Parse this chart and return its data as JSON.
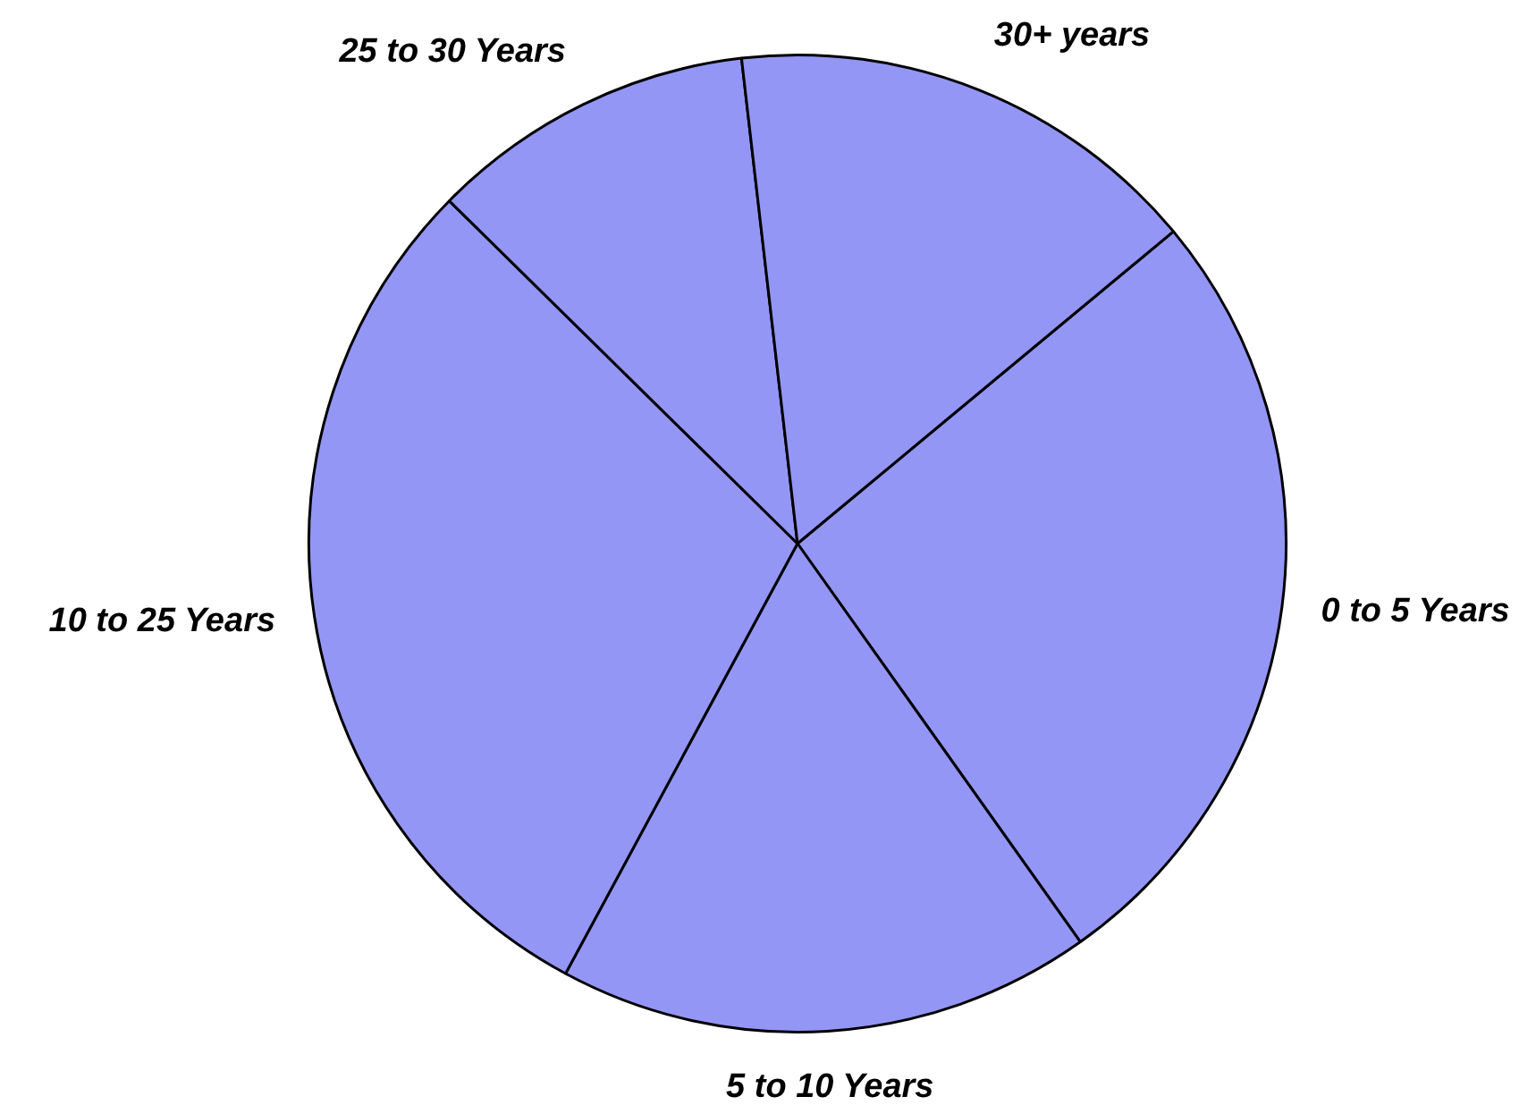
{
  "chart_data": {
    "type": "pie",
    "categories": [
      "0 to 5 Years",
      "5 to 10 Years",
      "10 to 25 Years",
      "25 to 30 Years",
      "30+ years"
    ],
    "values": [
      26.2,
      17.7,
      29.5,
      10.8,
      15.8
    ],
    "colors": [
      "#9496f5",
      "#9496f5",
      "#9496f5",
      "#9496f5",
      "#9496f5"
    ],
    "legend": false
  }
}
